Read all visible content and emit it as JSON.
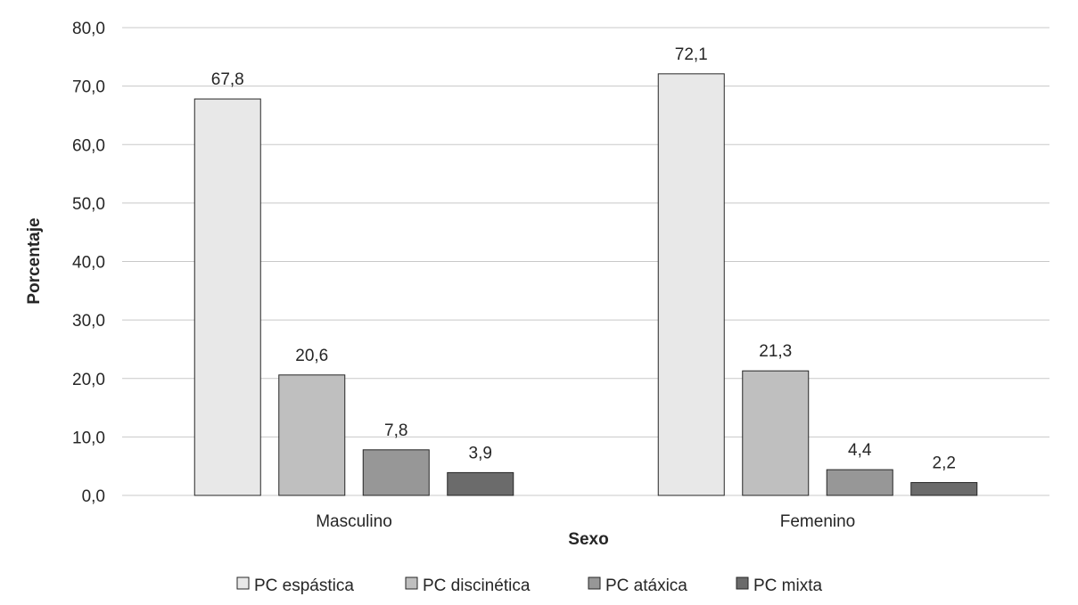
{
  "chart_data": {
    "type": "bar",
    "title": "",
    "xlabel": "Sexo",
    "ylabel": "Porcentaje",
    "ylim": [
      0,
      80
    ],
    "ytick_step": 10,
    "ytick_labels": [
      "0,0",
      "10,0",
      "20,0",
      "30,0",
      "40,0",
      "50,0",
      "60,0",
      "70,0",
      "80,0"
    ],
    "grid": true,
    "legend_position": "bottom",
    "categories": [
      "Masculino",
      "Femenino"
    ],
    "series": [
      {
        "name": "PC espástica",
        "color": "#e8e8e8",
        "values": [
          67.8,
          72.1
        ],
        "labels": [
          "67,8",
          "72,1"
        ]
      },
      {
        "name": "PC discinética",
        "color": "#bfbfbf",
        "values": [
          20.6,
          21.3
        ],
        "labels": [
          "20,6",
          "21,3"
        ]
      },
      {
        "name": "PC atáxica",
        "color": "#979797",
        "values": [
          7.8,
          4.4
        ],
        "labels": [
          "7,8",
          "4,4"
        ]
      },
      {
        "name": "PC mixta",
        "color": "#6b6b6b",
        "values": [
          3.9,
          2.2
        ],
        "labels": [
          "3,9",
          "2,2"
        ]
      }
    ]
  }
}
